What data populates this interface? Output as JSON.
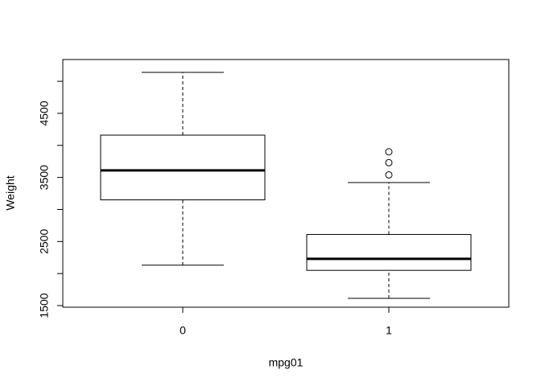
{
  "chart_data": {
    "type": "box",
    "x_label": "mpg01",
    "y_label": "Weight",
    "categories": [
      "0",
      "1"
    ],
    "boxes": [
      {
        "whisker_low": 2130,
        "q1": 3150,
        "median": 3610,
        "q3": 4160,
        "whisker_high": 5140,
        "outliers": []
      },
      {
        "whisker_low": 1613,
        "q1": 2050,
        "median": 2230,
        "q3": 2610,
        "whisker_high": 3420,
        "outliers": [
          3540,
          3730,
          3900
        ]
      }
    ],
    "ylim": [
      1475,
      5340
    ],
    "yticks": [
      1500,
      2500,
      3500,
      4500
    ],
    "yminor_ticks": [
      2000,
      3000,
      4000,
      5000
    ],
    "color": "#000000"
  }
}
